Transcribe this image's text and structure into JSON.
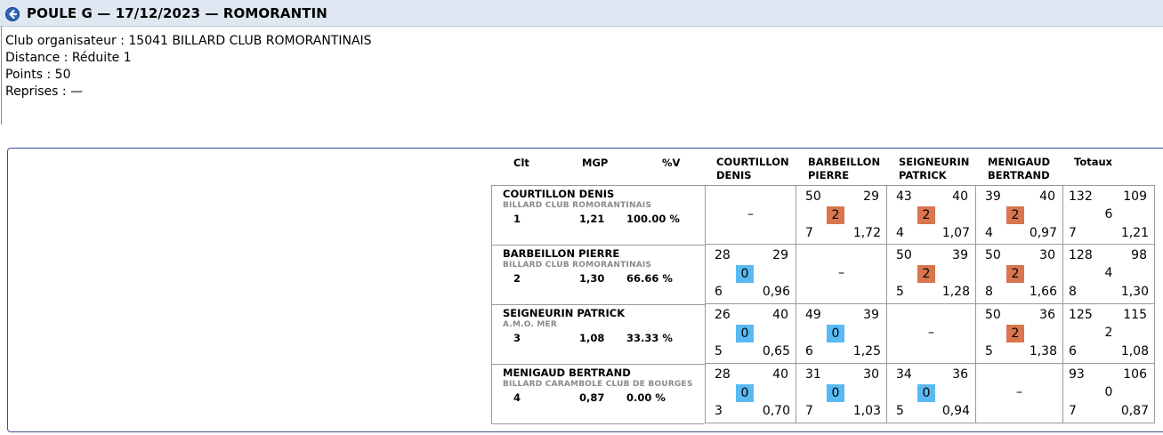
{
  "header": {
    "title": "POULE G — 17/12/2023 — ROMORANTIN",
    "back_icon": "arrow-left-circle-icon",
    "accent": "#2d63b8"
  },
  "info": {
    "club": "Club organisateur : 15041 BILLARD CLUB ROMORANTINAIS",
    "distance": "Distance : Réduite 1",
    "points": "Points : 50",
    "reprises": "Reprises : —"
  },
  "table": {
    "headers": {
      "clt": "Clt",
      "mgp": "MGP",
      "pctv": "%V",
      "cols": [
        [
          "COURTILLON",
          "DENIS"
        ],
        [
          "BARBEILLON",
          "PIERRE"
        ],
        [
          "SEIGNEURIN",
          "PATRICK"
        ],
        [
          "MENIGAUD",
          "BERTRAND"
        ]
      ],
      "totaux": "Totaux"
    },
    "badge_colors": {
      "win": "#d9754f",
      "loss": "#59b9f2"
    },
    "empty_cell": "–",
    "players": [
      {
        "name": "COURTILLON DENIS",
        "club": "BILLARD CLUB ROMORANTINAIS",
        "rank": "1",
        "mgp": "1,21",
        "pct": "100.00 %",
        "results": [
          null,
          {
            "pts": "50",
            "opp": "29",
            "score": "2",
            "rep": "7",
            "moy": "1,72",
            "win": true
          },
          {
            "pts": "43",
            "opp": "40",
            "score": "2",
            "rep": "4",
            "moy": "1,07",
            "win": true
          },
          {
            "pts": "39",
            "opp": "40",
            "score": "2",
            "rep": "4",
            "moy": "0,97",
            "win": true
          }
        ],
        "totals": {
          "pts": "132",
          "opp": "109",
          "score": "6",
          "rep": "7",
          "moy": "1,21"
        }
      },
      {
        "name": "BARBEILLON PIERRE",
        "club": "BILLARD CLUB ROMORANTINAIS",
        "rank": "2",
        "mgp": "1,30",
        "pct": "66.66 %",
        "results": [
          {
            "pts": "28",
            "opp": "29",
            "score": "0",
            "rep": "6",
            "moy": "0,96",
            "win": false
          },
          null,
          {
            "pts": "50",
            "opp": "39",
            "score": "2",
            "rep": "5",
            "moy": "1,28",
            "win": true
          },
          {
            "pts": "50",
            "opp": "30",
            "score": "2",
            "rep": "8",
            "moy": "1,66",
            "win": true
          }
        ],
        "totals": {
          "pts": "128",
          "opp": "98",
          "score": "4",
          "rep": "8",
          "moy": "1,30"
        }
      },
      {
        "name": "SEIGNEURIN PATRICK",
        "club": "A.M.O. MER",
        "rank": "3",
        "mgp": "1,08",
        "pct": "33.33 %",
        "results": [
          {
            "pts": "26",
            "opp": "40",
            "score": "0",
            "rep": "5",
            "moy": "0,65",
            "win": false
          },
          {
            "pts": "49",
            "opp": "39",
            "score": "0",
            "rep": "6",
            "moy": "1,25",
            "win": false
          },
          null,
          {
            "pts": "50",
            "opp": "36",
            "score": "2",
            "rep": "5",
            "moy": "1,38",
            "win": true
          }
        ],
        "totals": {
          "pts": "125",
          "opp": "115",
          "score": "2",
          "rep": "6",
          "moy": "1,08"
        }
      },
      {
        "name": "MENIGAUD BERTRAND",
        "club": "BILLARD CARAMBOLE CLUB DE BOURGES",
        "rank": "4",
        "mgp": "0,87",
        "pct": "0.00 %",
        "results": [
          {
            "pts": "28",
            "opp": "40",
            "score": "0",
            "rep": "3",
            "moy": "0,70",
            "win": false
          },
          {
            "pts": "31",
            "opp": "30",
            "score": "0",
            "rep": "7",
            "moy": "1,03",
            "win": false
          },
          {
            "pts": "34",
            "opp": "36",
            "score": "0",
            "rep": "5",
            "moy": "0,94",
            "win": false
          },
          null
        ],
        "totals": {
          "pts": "93",
          "opp": "106",
          "score": "0",
          "rep": "7",
          "moy": "0,87"
        }
      }
    ]
  }
}
